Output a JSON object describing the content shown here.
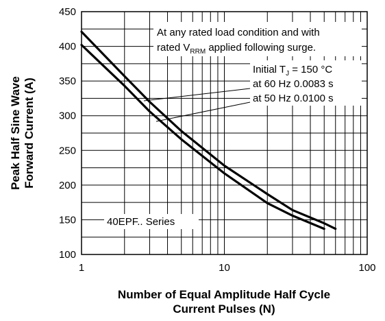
{
  "chart_data": {
    "type": "line",
    "xscale": "log",
    "xlim": [
      1,
      100
    ],
    "ylim": [
      100,
      450
    ],
    "x_ticks": [
      "1",
      "10",
      "100"
    ],
    "y_ticks": [
      "100",
      "150",
      "200",
      "250",
      "300",
      "350",
      "400",
      "450"
    ],
    "xlabel": [
      "Number of Equal Amplitude Half Cycle",
      "Current Pulses (N)"
    ],
    "ylabel": [
      "Peak Half Sine Wave",
      "Forward Current (A)"
    ],
    "grid": true,
    "series": [
      {
        "name": "at 60 Hz 0.0083 s",
        "x": [
          1,
          2,
          3,
          5,
          10,
          20,
          30,
          50,
          60
        ],
        "y": [
          421,
          357,
          320,
          278,
          228,
          187,
          164,
          145,
          137
        ]
      },
      {
        "name": "at 50 Hz 0.0100 s",
        "x": [
          1,
          2,
          3,
          5,
          10,
          20,
          30,
          50
        ],
        "y": [
          402,
          343,
          306,
          266,
          217,
          174,
          156,
          137
        ]
      }
    ],
    "annotations": {
      "condition_line1": "At any rated load condition and with",
      "condition_line2_pre": "rated V",
      "condition_line2_sub": "RRM",
      "condition_line2_post": " applied following surge.",
      "initial_pre": "Initial T",
      "initial_sub": "J",
      "initial_post": " = 150 °C",
      "series_label": "40EPF.. Series"
    }
  }
}
